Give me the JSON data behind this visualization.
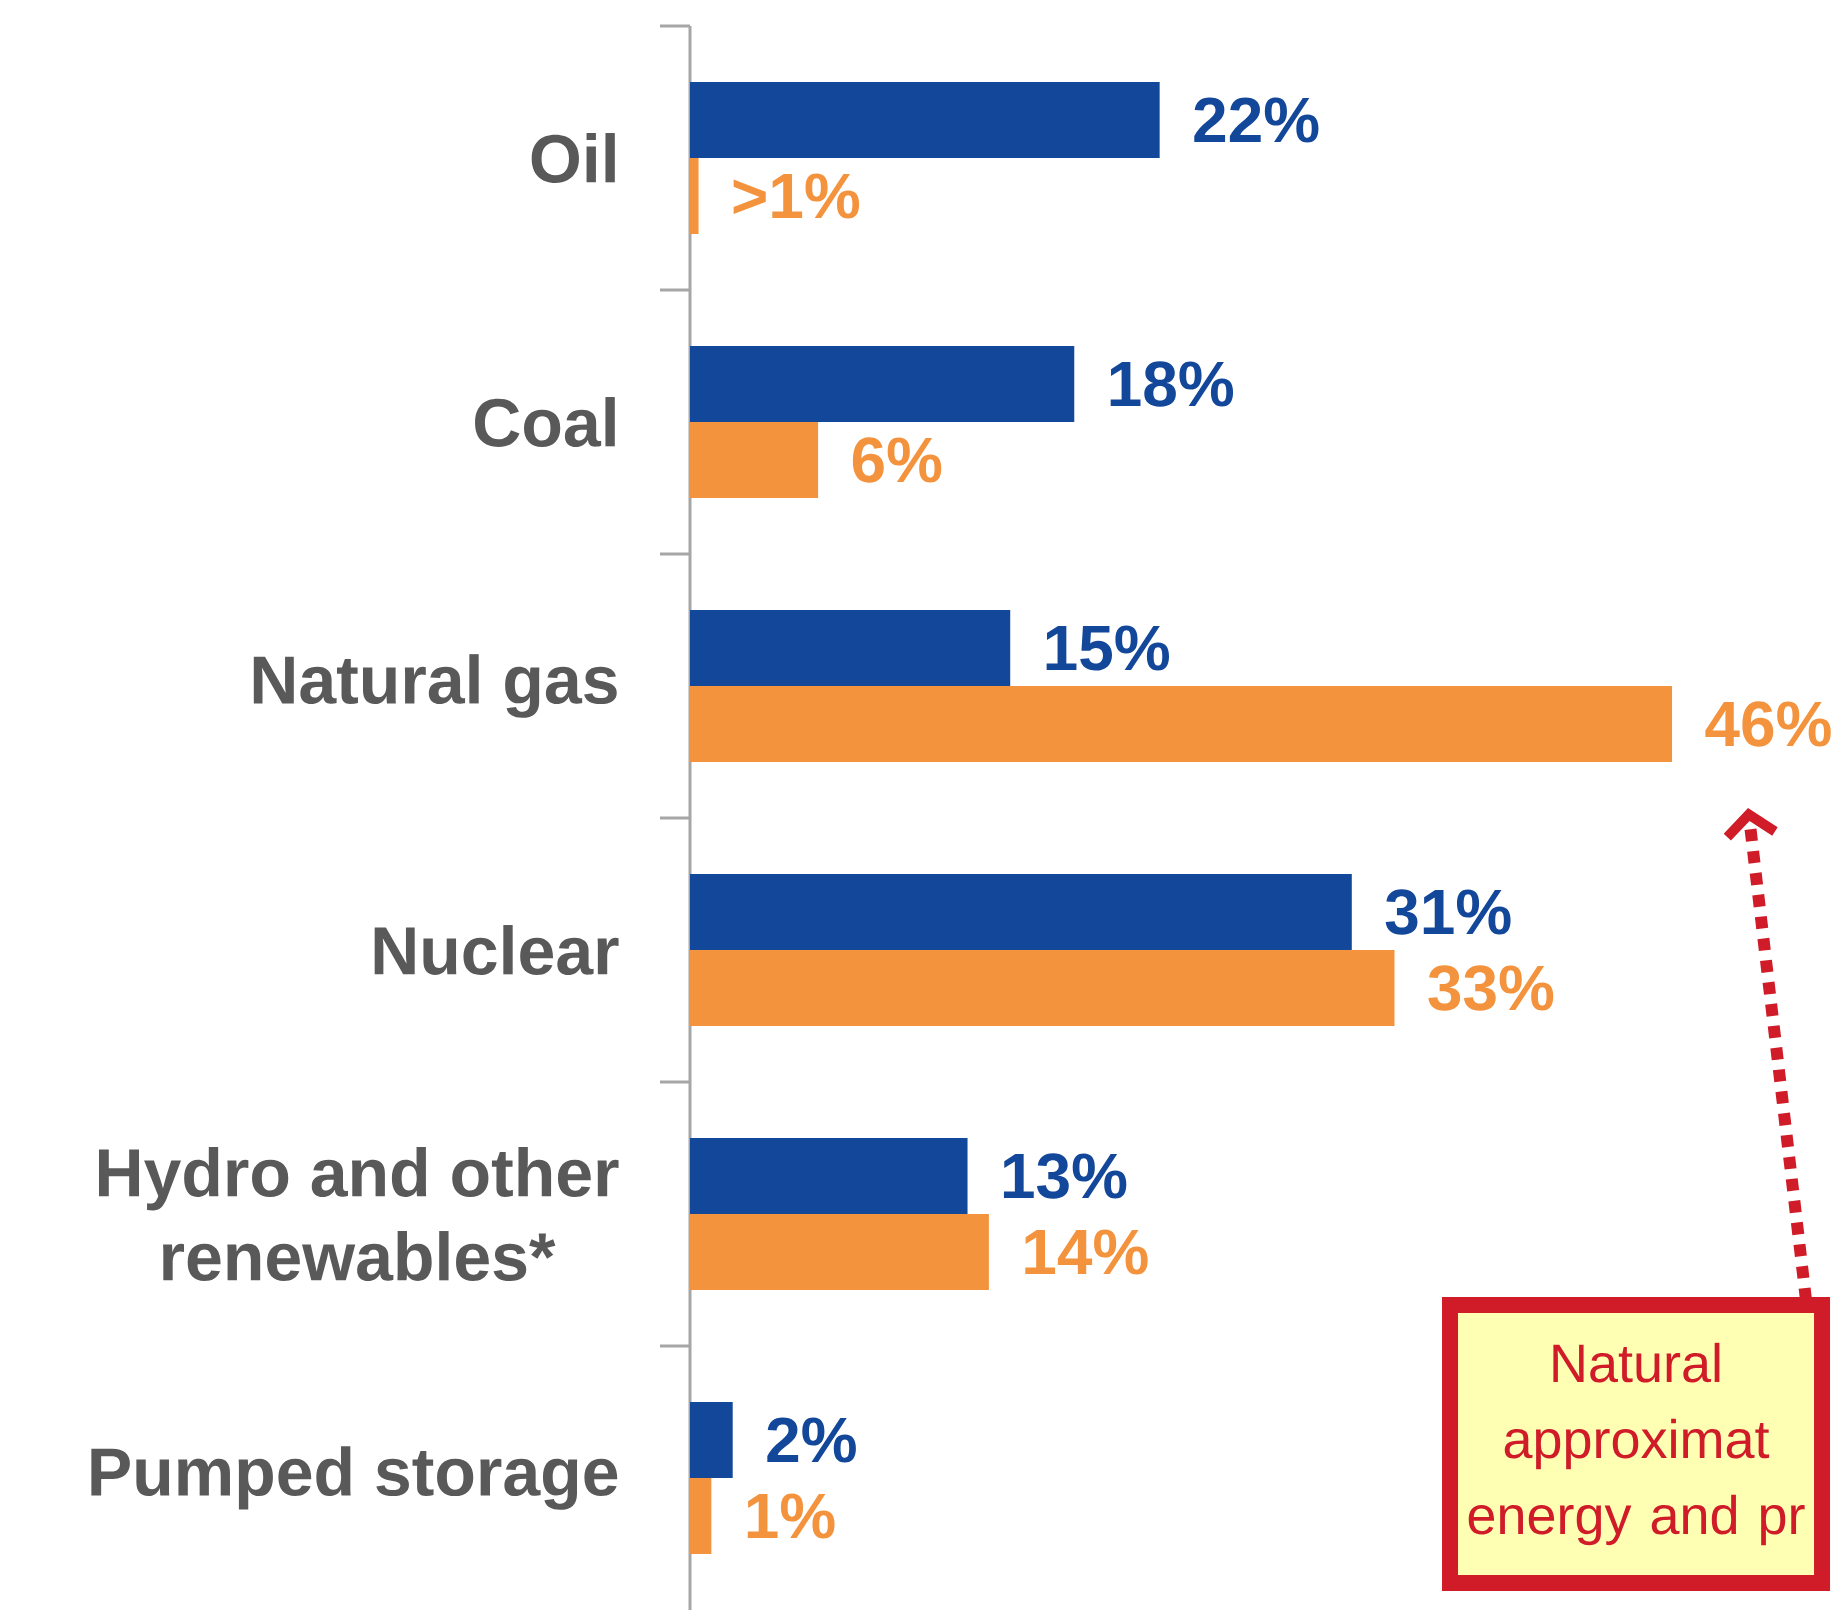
{
  "chart_data": {
    "type": "bar",
    "orientation": "horizontal",
    "categories": [
      "Oil",
      "Coal",
      "Natural gas",
      "Nuclear",
      "Hydro and other renewables*",
      "Pumped storage"
    ],
    "series": [
      {
        "color": "#13479a",
        "values": [
          22,
          18,
          15,
          31,
          13,
          2
        ],
        "value_labels": [
          "22%",
          "18%",
          "15%",
          "31%",
          "13%",
          "2%"
        ]
      },
      {
        "color": "#f4933d",
        "values": [
          0.4,
          6,
          46,
          33,
          14,
          1
        ],
        "value_labels": [
          ">1%",
          "6%",
          "46%",
          "33%",
          "14%",
          "1%"
        ]
      }
    ],
    "tick_labels": "y",
    "annotations": [
      "Natural approximat energy and pr"
    ]
  }
}
